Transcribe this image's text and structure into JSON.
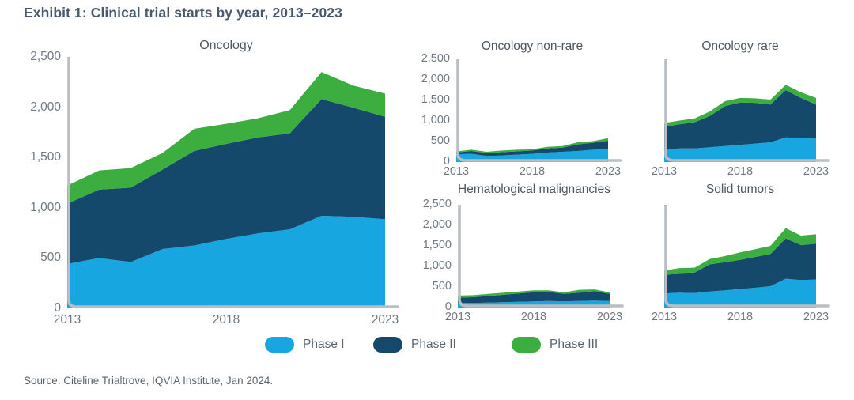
{
  "title": "Exhibit 1: Clinical trial starts by year, 2013–2023",
  "source": "Source: Citeline Trialtrove, IQVIA Institute, Jan 2024.",
  "colors": {
    "phase1": "#18a6e0",
    "phase2": "#15496c",
    "phase3": "#3cae3f",
    "axis": "#b9bec4",
    "tick_text": "#6f7983",
    "title_text": "#4a5a6e"
  },
  "legend": [
    {
      "label": "Phase I",
      "color": "#18a6e0"
    },
    {
      "label": "Phase II",
      "color": "#15496c"
    },
    {
      "label": "Phase III",
      "color": "#3cae3f"
    }
  ],
  "axis": {
    "y_ticks": [
      "2,500",
      "2,000",
      "1,500",
      "1,000",
      "500",
      "0"
    ],
    "x_ticks": [
      "2013",
      "2018",
      "2023"
    ],
    "y_max": 2500
  },
  "chart_data": [
    {
      "type": "area",
      "stacked": true,
      "title": "Oncology",
      "show_y_labels": true,
      "x": [
        2013,
        2014,
        2015,
        2016,
        2017,
        2018,
        2019,
        2020,
        2021,
        2022,
        2023
      ],
      "xlabel": "",
      "ylabel": "",
      "ylim": [
        0,
        2500
      ],
      "grid": false,
      "series": [
        {
          "name": "Phase I",
          "color": "#18a6e0",
          "values": [
            440,
            500,
            460,
            590,
            625,
            690,
            745,
            785,
            920,
            910,
            885
          ]
        },
        {
          "name": "Phase II",
          "color": "#15496c",
          "values": [
            600,
            680,
            740,
            790,
            940,
            945,
            955,
            955,
            1160,
            1085,
            1020
          ]
        },
        {
          "name": "Phase III",
          "color": "#3cae3f",
          "values": [
            180,
            190,
            195,
            165,
            220,
            200,
            190,
            230,
            270,
            220,
            230
          ]
        }
      ]
    },
    {
      "type": "area",
      "stacked": true,
      "title": "Oncology non-rare",
      "show_y_labels": true,
      "x": [
        2013,
        2014,
        2015,
        2016,
        2017,
        2018,
        2019,
        2020,
        2021,
        2022,
        2023
      ],
      "xlabel": "",
      "ylabel": "",
      "ylim": [
        0,
        2500
      ],
      "grid": false,
      "series": [
        {
          "name": "Phase I",
          "color": "#18a6e0",
          "values": [
            190,
            200,
            150,
            160,
            180,
            200,
            230,
            250,
            270,
            300,
            310
          ]
        },
        {
          "name": "Phase II",
          "color": "#15496c",
          "values": [
            40,
            70,
            70,
            80,
            80,
            80,
            100,
            100,
            160,
            170,
            210
          ]
        },
        {
          "name": "Phase III",
          "color": "#3cae3f",
          "values": [
            30,
            30,
            30,
            40,
            40,
            30,
            40,
            40,
            50,
            40,
            60
          ]
        }
      ]
    },
    {
      "type": "area",
      "stacked": true,
      "title": "Oncology rare",
      "show_y_labels": false,
      "x": [
        2013,
        2014,
        2015,
        2016,
        2017,
        2018,
        2019,
        2020,
        2021,
        2022,
        2023
      ],
      "xlabel": "",
      "ylabel": "",
      "ylim": [
        0,
        2500
      ],
      "grid": false,
      "series": [
        {
          "name": "Phase I",
          "color": "#18a6e0",
          "values": [
            300,
            330,
            330,
            360,
            390,
            420,
            450,
            480,
            600,
            580,
            570
          ]
        },
        {
          "name": "Phase II",
          "color": "#15496c",
          "values": [
            560,
            590,
            640,
            760,
            970,
            1030,
            990,
            920,
            1150,
            980,
            830
          ]
        },
        {
          "name": "Phase III",
          "color": "#3cae3f",
          "values": [
            90,
            90,
            90,
            110,
            120,
            110,
            110,
            120,
            130,
            140,
            160
          ]
        }
      ]
    },
    {
      "type": "area",
      "stacked": true,
      "title": "Hematological malignancies",
      "show_y_labels": true,
      "x": [
        2013,
        2014,
        2015,
        2016,
        2017,
        2018,
        2019,
        2020,
        2021,
        2022,
        2023
      ],
      "xlabel": "",
      "ylabel": "",
      "ylim": [
        0,
        2500
      ],
      "grid": false,
      "series": [
        {
          "name": "Phase I",
          "color": "#18a6e0",
          "values": [
            110,
            110,
            120,
            130,
            140,
            150,
            160,
            150,
            160,
            170,
            160
          ]
        },
        {
          "name": "Phase II",
          "color": "#15496c",
          "values": [
            130,
            140,
            160,
            180,
            200,
            220,
            220,
            180,
            200,
            230,
            170
          ]
        },
        {
          "name": "Phase III",
          "color": "#3cae3f",
          "values": [
            50,
            50,
            50,
            50,
            50,
            50,
            40,
            40,
            70,
            40,
            40
          ]
        }
      ]
    },
    {
      "type": "area",
      "stacked": true,
      "title": "Solid tumors",
      "show_y_labels": false,
      "x": [
        2013,
        2014,
        2015,
        2016,
        2017,
        2018,
        2019,
        2020,
        2021,
        2022,
        2023
      ],
      "xlabel": "",
      "ylabel": "",
      "ylim": [
        0,
        2500
      ],
      "grid": false,
      "series": [
        {
          "name": "Phase I",
          "color": "#18a6e0",
          "values": [
            340,
            360,
            350,
            390,
            420,
            450,
            480,
            520,
            700,
            670,
            680
          ]
        },
        {
          "name": "Phase II",
          "color": "#15496c",
          "values": [
            440,
            480,
            500,
            660,
            680,
            710,
            750,
            780,
            980,
            850,
            870
          ]
        },
        {
          "name": "Phase III",
          "color": "#3cae3f",
          "values": [
            120,
            120,
            120,
            130,
            150,
            180,
            190,
            200,
            250,
            230,
            230
          ]
        }
      ]
    }
  ]
}
